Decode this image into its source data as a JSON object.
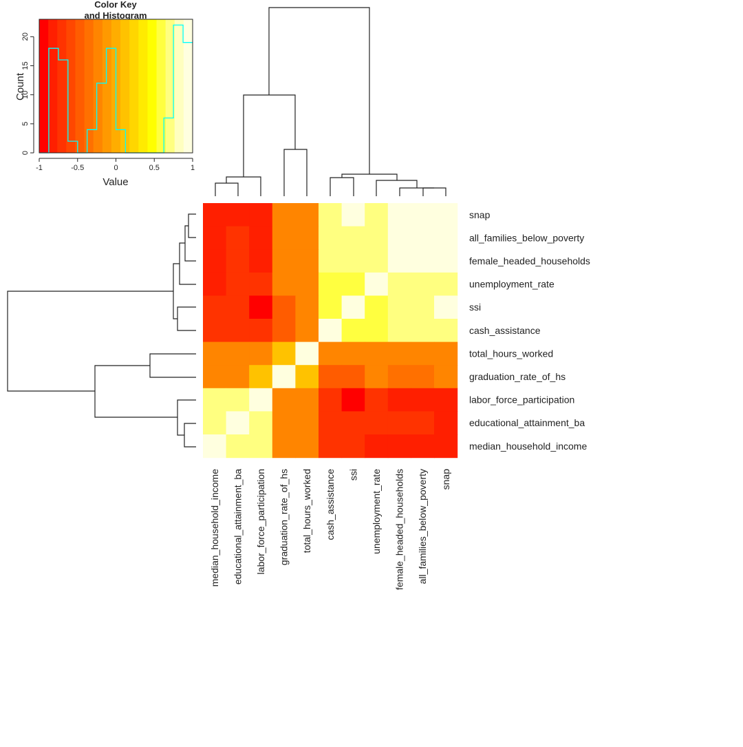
{
  "chart_data": {
    "type": "heatmap",
    "title": "",
    "row_labels": [
      "snap",
      "all_families_below_poverty",
      "female_headed_households",
      "unemployment_rate",
      "ssi",
      "cash_assistance",
      "total_hours_worked",
      "graduation_rate_of_hs",
      "labor_force_participation",
      "educational_attainment_ba",
      "median_household_income"
    ],
    "col_labels": [
      "median_household_income",
      "educational_attainment_ba",
      "labor_force_participation",
      "graduation_rate_of_hs",
      "total_hours_worked",
      "cash_assistance",
      "ssi",
      "unemployment_rate",
      "female_headed_households",
      "all_families_below_poverty",
      "snap"
    ],
    "values": [
      [
        -0.9,
        -0.9,
        -0.9,
        -0.3,
        -0.2,
        0.7,
        0.95,
        0.7,
        0.95,
        0.95,
        1.0
      ],
      [
        -0.9,
        -0.8,
        -0.9,
        -0.3,
        -0.2,
        0.8,
        0.8,
        0.8,
        0.95,
        1.0,
        0.95
      ],
      [
        -0.9,
        -0.8,
        -0.9,
        -0.3,
        -0.2,
        0.8,
        0.8,
        0.8,
        1.0,
        0.95,
        0.95
      ],
      [
        -0.9,
        -0.8,
        -0.8,
        -0.2,
        -0.2,
        0.6,
        0.6,
        1.0,
        0.8,
        0.8,
        0.8
      ],
      [
        -0.8,
        -0.7,
        -0.95,
        -0.5,
        -0.2,
        0.6,
        1.0,
        0.6,
        0.8,
        0.8,
        0.95
      ],
      [
        -0.8,
        -0.8,
        -0.8,
        -0.5,
        -0.3,
        1.0,
        0.6,
        0.6,
        0.8,
        0.8,
        0.8
      ],
      [
        -0.3,
        -0.3,
        -0.2,
        0.1,
        1.0,
        -0.3,
        -0.2,
        -0.2,
        -0.2,
        -0.2,
        -0.2
      ],
      [
        -0.2,
        -0.2,
        0.1,
        1.0,
        0.1,
        -0.5,
        -0.5,
        -0.2,
        -0.4,
        -0.4,
        -0.3
      ],
      [
        0.8,
        0.8,
        1.0,
        -0.2,
        -0.2,
        -0.8,
        -0.95,
        -0.8,
        -0.9,
        -0.9,
        -0.9
      ],
      [
        0.8,
        1.0,
        0.8,
        -0.2,
        -0.3,
        -0.8,
        -0.7,
        -0.8,
        -0.8,
        -0.8,
        -0.9
      ],
      [
        1.0,
        0.8,
        0.8,
        -0.2,
        -0.3,
        -0.8,
        -0.8,
        -0.9,
        -0.9,
        -0.9,
        -0.9
      ]
    ],
    "color_scale": [
      "#FF0000",
      "#FF1F00",
      "#FF3300",
      "#FF4700",
      "#FF5C00",
      "#FF7000",
      "#FF8500",
      "#FF9900",
      "#FFAD00",
      "#FFC200",
      "#FFD600",
      "#FFEB00",
      "#FFFF00",
      "#FFFF40",
      "#FFFF80",
      "#FFFFBF",
      "#FFFFDF"
    ],
    "key": {
      "title_line1": "Color Key",
      "title_line2": "and Histogram",
      "xlabel": "Value",
      "ylabel": "Count",
      "xlim": [
        -1,
        1
      ],
      "ylim": [
        0,
        23
      ],
      "xticks": [
        "-1",
        "-0.5",
        "0",
        "0.5",
        "1"
      ],
      "xtick_values": [
        -1,
        -0.5,
        0,
        0.5,
        1
      ],
      "yticks": [
        "0",
        "5",
        "10",
        "15",
        "20"
      ],
      "ytick_values": [
        0,
        5,
        10,
        15,
        20
      ],
      "histogram_bins": [
        [
          -1,
          -0.875,
          0
        ],
        [
          -0.875,
          -0.75,
          18
        ],
        [
          -0.75,
          -0.625,
          16
        ],
        [
          -0.625,
          -0.5,
          2
        ],
        [
          -0.5,
          -0.375,
          0
        ],
        [
          -0.375,
          -0.25,
          4
        ],
        [
          -0.25,
          -0.125,
          12
        ],
        [
          -0.125,
          0,
          18
        ],
        [
          0,
          0.125,
          4
        ],
        [
          0.125,
          0.25,
          0
        ],
        [
          0.25,
          0.375,
          0
        ],
        [
          0.375,
          0.5,
          0
        ],
        [
          0.5,
          0.625,
          0
        ],
        [
          0.625,
          0.75,
          6
        ],
        [
          0.75,
          0.875,
          22
        ],
        [
          0.875,
          1,
          19
        ]
      ],
      "histogram_color": "#00FFFF"
    }
  }
}
